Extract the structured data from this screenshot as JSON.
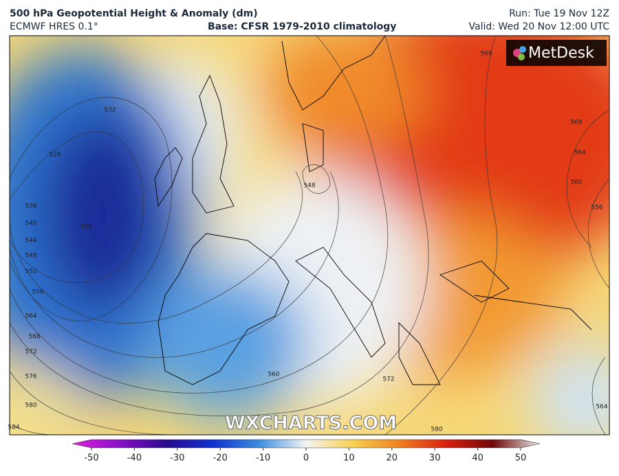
{
  "header": {
    "title": "500 hPa Geopotential Height & Anomaly (dm)",
    "model": "ECMWF HRES 0.1°",
    "base": "Base: CFSR 1979-2010 climatology",
    "run": "Run: Tue 19 Nov 12Z",
    "valid": "Valid: Wed 20 Nov 12:00 UTC"
  },
  "logo": "MetDesk",
  "watermark": "WXCHARTS.COM",
  "colorbar": {
    "range": [
      -50,
      50
    ],
    "ticks": [
      -50,
      -40,
      -30,
      -20,
      -10,
      0,
      10,
      20,
      30,
      40,
      50
    ]
  },
  "contour_labels": [
    "532",
    "528",
    "524",
    "536",
    "540",
    "544",
    "548",
    "552",
    "556",
    "564",
    "568",
    "572",
    "576",
    "580",
    "584",
    "548",
    "560",
    "572",
    "580",
    "568",
    "568",
    "564",
    "560",
    "556",
    "564"
  ]
}
